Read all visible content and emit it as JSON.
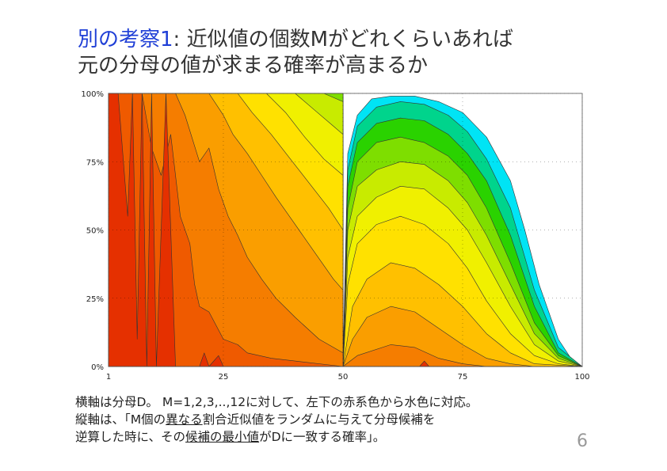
{
  "slide": {
    "title_highlight": "別の考察1",
    "title_rest": ": 近似値の個数Mがどれくらいあれば",
    "title_line2": "元の分母の値が求まる確率が高まるか",
    "caption_line1": "横軸は分母D。 M=1,2,3,..,12に対して、左下の赤系色から水色に対応。",
    "caption_line2_a": "縦軸は、「M個の",
    "caption_line2_u1": "異なる",
    "caption_line2_b": "割合近似値をランダムに与えて分母候補を",
    "caption_line3_a": "逆算した時に、その",
    "caption_line3_u1": "候補の最小値",
    "caption_line3_b": "がDに一致する確率」。",
    "page_number": "6"
  },
  "chart_data": {
    "type": "area",
    "x_range": [
      1,
      100
    ],
    "y_range": [
      0,
      100
    ],
    "x_ticks": [
      1,
      25,
      50,
      75,
      100
    ],
    "x_tick_labels": [
      "1",
      "25",
      "50",
      "75",
      "100"
    ],
    "y_ticks": [
      0,
      25,
      50,
      75,
      100
    ],
    "y_tick_labels": [
      "0%",
      "25%",
      "50%",
      "75%",
      "100%"
    ],
    "grid": true,
    "series": [
      {
        "M": 1,
        "color": "#e53000",
        "points": [
          [
            1,
            100
          ],
          [
            3,
            100
          ],
          [
            5,
            55
          ],
          [
            6,
            100
          ],
          [
            7,
            10
          ],
          [
            8,
            100
          ],
          [
            9,
            0
          ],
          [
            10,
            100
          ],
          [
            11,
            0
          ],
          [
            13,
            100
          ],
          [
            15,
            0
          ],
          [
            20,
            0
          ],
          [
            21,
            5
          ],
          [
            22,
            0
          ],
          [
            24,
            4
          ],
          [
            25,
            0
          ],
          [
            50,
            0
          ],
          [
            66,
            0
          ],
          [
            67,
            2
          ],
          [
            68,
            0
          ],
          [
            100,
            0
          ]
        ]
      },
      {
        "M": 2,
        "color": "#ef5a00",
        "points": [
          [
            1,
            100
          ],
          [
            8,
            100
          ],
          [
            10,
            80
          ],
          [
            12,
            70
          ],
          [
            14,
            85
          ],
          [
            16,
            55
          ],
          [
            18,
            45
          ],
          [
            19,
            30
          ],
          [
            20,
            22
          ],
          [
            22,
            20
          ],
          [
            25,
            10
          ],
          [
            28,
            8
          ],
          [
            30,
            5
          ],
          [
            35,
            3
          ],
          [
            40,
            2
          ],
          [
            50,
            0
          ],
          [
            100,
            0
          ]
        ]
      },
      {
        "M": 3,
        "color": "#f57d00",
        "points": [
          [
            1,
            100
          ],
          [
            15,
            100
          ],
          [
            17,
            92
          ],
          [
            20,
            75
          ],
          [
            22,
            80
          ],
          [
            24,
            65
          ],
          [
            26,
            55
          ],
          [
            28,
            48
          ],
          [
            30,
            40
          ],
          [
            33,
            32
          ],
          [
            36,
            25
          ],
          [
            40,
            18
          ],
          [
            45,
            10
          ],
          [
            50,
            5
          ],
          [
            50,
            0
          ],
          [
            53,
            4
          ],
          [
            60,
            8
          ],
          [
            65,
            7
          ],
          [
            70,
            3
          ],
          [
            75,
            1
          ],
          [
            80,
            0
          ],
          [
            100,
            0
          ]
        ]
      },
      {
        "M": 4,
        "color": "#fa9e00",
        "points": [
          [
            1,
            100
          ],
          [
            22,
            100
          ],
          [
            25,
            92
          ],
          [
            27,
            85
          ],
          [
            30,
            78
          ],
          [
            33,
            70
          ],
          [
            36,
            62
          ],
          [
            40,
            52
          ],
          [
            44,
            42
          ],
          [
            48,
            32
          ],
          [
            50,
            28
          ],
          [
            50,
            0
          ],
          [
            52,
            10
          ],
          [
            55,
            18
          ],
          [
            60,
            22
          ],
          [
            65,
            20
          ],
          [
            70,
            14
          ],
          [
            75,
            8
          ],
          [
            80,
            3
          ],
          [
            85,
            1
          ],
          [
            90,
            0
          ],
          [
            100,
            0
          ]
        ]
      },
      {
        "M": 5,
        "color": "#ffc000",
        "points": [
          [
            1,
            100
          ],
          [
            28,
            100
          ],
          [
            31,
            93
          ],
          [
            35,
            85
          ],
          [
            39,
            76
          ],
          [
            43,
            67
          ],
          [
            47,
            58
          ],
          [
            50,
            50
          ],
          [
            50,
            0
          ],
          [
            52,
            22
          ],
          [
            55,
            32
          ],
          [
            60,
            38
          ],
          [
            65,
            36
          ],
          [
            70,
            30
          ],
          [
            75,
            22
          ],
          [
            80,
            12
          ],
          [
            85,
            5
          ],
          [
            90,
            1
          ],
          [
            100,
            0
          ]
        ]
      },
      {
        "M": 6,
        "color": "#ffe100",
        "points": [
          [
            1,
            100
          ],
          [
            34,
            100
          ],
          [
            38,
            93
          ],
          [
            42,
            84
          ],
          [
            46,
            76
          ],
          [
            50,
            70
          ],
          [
            50,
            0
          ],
          [
            51,
            30
          ],
          [
            53,
            45
          ],
          [
            57,
            52
          ],
          [
            62,
            55
          ],
          [
            67,
            52
          ],
          [
            72,
            45
          ],
          [
            76,
            36
          ],
          [
            80,
            24
          ],
          [
            85,
            12
          ],
          [
            90,
            4
          ],
          [
            95,
            1
          ],
          [
            100,
            0
          ]
        ]
      },
      {
        "M": 7,
        "color": "#f0f000",
        "points": [
          [
            1,
            100
          ],
          [
            40,
            100
          ],
          [
            44,
            94
          ],
          [
            48,
            88
          ],
          [
            50,
            85
          ],
          [
            50,
            0
          ],
          [
            51,
            40
          ],
          [
            53,
            55
          ],
          [
            57,
            62
          ],
          [
            62,
            66
          ],
          [
            67,
            65
          ],
          [
            72,
            58
          ],
          [
            76,
            50
          ],
          [
            80,
            38
          ],
          [
            85,
            22
          ],
          [
            90,
            8
          ],
          [
            95,
            2
          ],
          [
            100,
            0
          ]
        ]
      },
      {
        "M": 8,
        "color": "#c8eb00",
        "points": [
          [
            1,
            100
          ],
          [
            46,
            100
          ],
          [
            50,
            97
          ],
          [
            50,
            0
          ],
          [
            51,
            50
          ],
          [
            53,
            66
          ],
          [
            57,
            72
          ],
          [
            62,
            75
          ],
          [
            67,
            74
          ],
          [
            72,
            68
          ],
          [
            76,
            60
          ],
          [
            80,
            48
          ],
          [
            85,
            30
          ],
          [
            90,
            12
          ],
          [
            95,
            3
          ],
          [
            100,
            0
          ]
        ]
      },
      {
        "M": 9,
        "color": "#7ede00",
        "points": [
          [
            1,
            100
          ],
          [
            50,
            100
          ],
          [
            50,
            0
          ],
          [
            51,
            58
          ],
          [
            53,
            75
          ],
          [
            57,
            82
          ],
          [
            62,
            84
          ],
          [
            67,
            82
          ],
          [
            72,
            77
          ],
          [
            76,
            70
          ],
          [
            80,
            58
          ],
          [
            85,
            38
          ],
          [
            90,
            16
          ],
          [
            95,
            4
          ],
          [
            100,
            0
          ]
        ]
      },
      {
        "M": 10,
        "color": "#2ad200",
        "points": [
          [
            1,
            100
          ],
          [
            50,
            100
          ],
          [
            50,
            0
          ],
          [
            51,
            66
          ],
          [
            53,
            82
          ],
          [
            57,
            89
          ],
          [
            62,
            91
          ],
          [
            67,
            90
          ],
          [
            72,
            85
          ],
          [
            76,
            78
          ],
          [
            80,
            68
          ],
          [
            85,
            48
          ],
          [
            90,
            22
          ],
          [
            95,
            5
          ],
          [
            100,
            0
          ]
        ]
      },
      {
        "M": 11,
        "color": "#00d48c",
        "points": [
          [
            1,
            100
          ],
          [
            50,
            100
          ],
          [
            50,
            0
          ],
          [
            51,
            72
          ],
          [
            53,
            88
          ],
          [
            57,
            95
          ],
          [
            62,
            97
          ],
          [
            67,
            96
          ],
          [
            72,
            92
          ],
          [
            76,
            86
          ],
          [
            80,
            76
          ],
          [
            85,
            58
          ],
          [
            90,
            28
          ],
          [
            95,
            7
          ],
          [
            100,
            0
          ]
        ]
      },
      {
        "M": 12,
        "color": "#00e4f5",
        "points": [
          [
            1,
            100
          ],
          [
            50,
            100
          ],
          [
            50,
            0
          ],
          [
            51,
            78
          ],
          [
            53,
            92
          ],
          [
            56,
            98
          ],
          [
            60,
            99
          ],
          [
            65,
            99
          ],
          [
            70,
            97
          ],
          [
            75,
            93
          ],
          [
            80,
            84
          ],
          [
            85,
            68
          ],
          [
            88,
            50
          ],
          [
            91,
            30
          ],
          [
            95,
            10
          ],
          [
            98,
            2
          ],
          [
            100,
            0
          ]
        ]
      }
    ]
  }
}
